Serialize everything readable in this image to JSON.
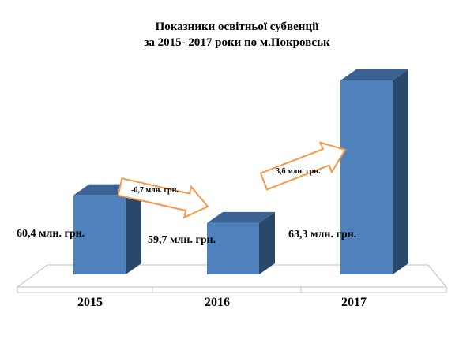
{
  "chart_data": {
    "type": "bar",
    "title_line1": "Показники освітньої субвенції",
    "title_line2": "за 2015- 2017 роки  по  м.Покровськ",
    "categories": [
      "2015",
      "2016",
      "2017"
    ],
    "values": [
      60.4,
      59.7,
      63.3
    ],
    "value_labels": [
      "60,4 млн. грн.",
      "59,7 млн. грн.",
      "63,3 млн. грн."
    ],
    "changes": [
      {
        "from": "2015",
        "to": "2016",
        "label": "-0,7 млн. грн."
      },
      {
        "from": "2016",
        "to": "2017",
        "label": "3,6 млн. грн."
      }
    ],
    "xlabel": "",
    "ylabel": "",
    "gridlines": false,
    "legend": "none",
    "three_d": true,
    "colors": {
      "bar_front": "#4f81bd",
      "bar_side": "#2a4869",
      "bar_top": "#3a6293",
      "arrow_stroke": "#f79646",
      "arrow_fill": "#ffffff",
      "floor_stroke": "#bfbfbf"
    }
  }
}
